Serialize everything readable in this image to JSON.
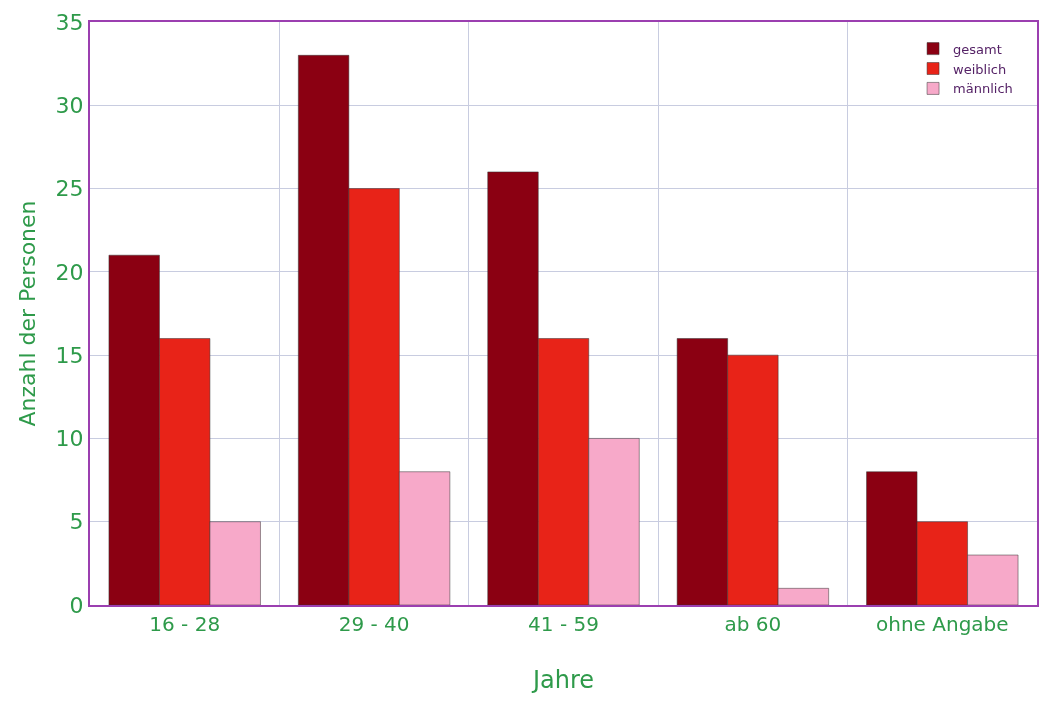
{
  "chart_data": {
    "type": "bar",
    "xlabel": "Jahre",
    "ylabel": "Anzahl der Personen",
    "categories": [
      "16 - 28",
      "29 - 40",
      "41 - 59",
      "ab 60",
      "ohne Angabe"
    ],
    "series": [
      {
        "name": "gesamt",
        "color": "#8b0012",
        "values": [
          21,
          33,
          26,
          16,
          8
        ]
      },
      {
        "name": "weiblich",
        "color": "#e82318",
        "values": [
          16,
          25,
          16,
          15,
          5
        ]
      },
      {
        "name": "männlich",
        "color": "#f7a9c9",
        "values": [
          5,
          8,
          10,
          1,
          3
        ]
      }
    ],
    "ylim": [
      0,
      35
    ],
    "yticks": [
      0,
      5,
      10,
      15,
      20,
      25,
      30,
      35
    ],
    "grid": true,
    "legend": "top right"
  }
}
